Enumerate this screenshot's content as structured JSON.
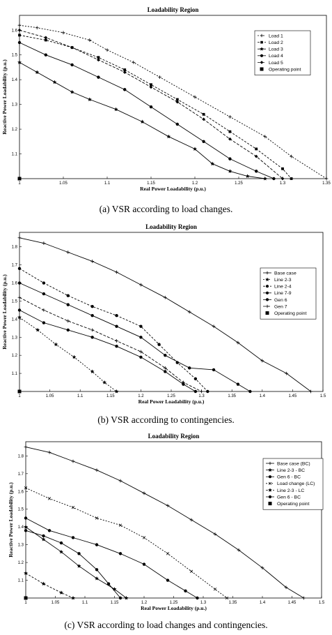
{
  "captions": [
    "(a) VSR according to load changes.",
    "(b) VSR according to contingencies.",
    "(c) VSR according to load changes and contingencies."
  ],
  "chart_data": [
    {
      "type": "line",
      "title": "Loadability Region",
      "xlabel": "Real Power Loadability (p.u.)",
      "ylabel": "Reactive Power Loadability (p.u.)",
      "xlim": [
        1.0,
        1.35
      ],
      "ylim": [
        1.0,
        1.66
      ],
      "xticks": [
        1,
        1.05,
        1.1,
        1.15,
        1.2,
        1.25,
        1.3,
        1.35
      ],
      "yticks": [
        1.1,
        1.2,
        1.3,
        1.4,
        1.5,
        1.6
      ],
      "xtick_labels": [
        "1",
        "1.05",
        "1.1",
        "1.15",
        "1.2",
        "1.25",
        "1.3",
        "1.35"
      ],
      "ytick_labels": [
        "1.1",
        "1.2",
        "1.3",
        "1.4",
        "1.5",
        "1.6"
      ],
      "grid": false,
      "legend_position": "top-right",
      "series": [
        {
          "name": "Load 1",
          "marker": "plus",
          "dash": "2,2",
          "x": [
            1.0,
            1.02,
            1.05,
            1.08,
            1.1,
            1.13,
            1.16,
            1.2,
            1.24,
            1.28,
            1.31,
            1.35
          ],
          "y": [
            1.62,
            1.61,
            1.59,
            1.56,
            1.52,
            1.47,
            1.41,
            1.33,
            1.25,
            1.17,
            1.09,
            1.0
          ]
        },
        {
          "name": "Load 2",
          "marker": "square",
          "dash": "3,2",
          "x": [
            1.0,
            1.03,
            1.06,
            1.09,
            1.12,
            1.15,
            1.18,
            1.21,
            1.24,
            1.27,
            1.3,
            1.31
          ],
          "y": [
            1.58,
            1.56,
            1.53,
            1.49,
            1.44,
            1.38,
            1.32,
            1.26,
            1.19,
            1.12,
            1.04,
            1.0
          ]
        },
        {
          "name": "Load 3",
          "marker": "star",
          "dash": "",
          "x": [
            1.0,
            1.02,
            1.04,
            1.06,
            1.08,
            1.11,
            1.14,
            1.17,
            1.2,
            1.22,
            1.24,
            1.26,
            1.28
          ],
          "y": [
            1.47,
            1.43,
            1.39,
            1.35,
            1.32,
            1.28,
            1.23,
            1.17,
            1.12,
            1.06,
            1.03,
            1.01,
            1.0
          ]
        },
        {
          "name": "Load 4",
          "marker": "dot",
          "dash": "",
          "x": [
            1.0,
            1.03,
            1.06,
            1.09,
            1.12,
            1.15,
            1.18,
            1.21,
            1.24,
            1.27,
            1.29
          ],
          "y": [
            1.55,
            1.5,
            1.46,
            1.41,
            1.36,
            1.29,
            1.22,
            1.15,
            1.08,
            1.03,
            1.0
          ]
        },
        {
          "name": "Load 5",
          "marker": "diamond",
          "dash": "4,2",
          "x": [
            1.0,
            1.03,
            1.06,
            1.09,
            1.12,
            1.15,
            1.18,
            1.21,
            1.24,
            1.27,
            1.3
          ],
          "y": [
            1.6,
            1.57,
            1.53,
            1.48,
            1.43,
            1.37,
            1.31,
            1.24,
            1.16,
            1.09,
            1.0
          ]
        },
        {
          "name": "Operating point",
          "marker": "square-filled",
          "line": false,
          "x": [
            1.0
          ],
          "y": [
            1.0
          ]
        }
      ]
    },
    {
      "type": "line",
      "title": "Loadability Region",
      "xlabel": "Real Power Loadability (p.u.)",
      "ylabel": "Reactive Power Loadability (p.u.)",
      "xlim": [
        1.0,
        1.5
      ],
      "ylim": [
        1.0,
        1.88
      ],
      "xticks": [
        1,
        1.05,
        1.1,
        1.15,
        1.2,
        1.25,
        1.3,
        1.35,
        1.4,
        1.45,
        1.5
      ],
      "yticks": [
        1.1,
        1.2,
        1.3,
        1.4,
        1.5,
        1.6,
        1.7,
        1.8
      ],
      "xtick_labels": [
        "1",
        "1.05",
        "1.1",
        "1.15",
        "1.2",
        "1.25",
        "1.3",
        "1.35",
        "1.4",
        "1.45",
        "1.5"
      ],
      "ytick_labels": [
        "1.1",
        "1.2",
        "1.3",
        "1.4",
        "1.5",
        "1.6",
        "1.7",
        "1.8"
      ],
      "grid": false,
      "legend_position": "right",
      "series": [
        {
          "name": "Base case",
          "marker": "plus",
          "dash": "",
          "x": [
            1.0,
            1.04,
            1.08,
            1.12,
            1.16,
            1.2,
            1.24,
            1.28,
            1.32,
            1.36,
            1.4,
            1.44,
            1.48
          ],
          "y": [
            1.85,
            1.82,
            1.77,
            1.72,
            1.66,
            1.59,
            1.52,
            1.44,
            1.36,
            1.27,
            1.17,
            1.1,
            1.0
          ]
        },
        {
          "name": "Line 2-3",
          "marker": "star",
          "dash": "2,2",
          "x": [
            1.0,
            1.03,
            1.06,
            1.09,
            1.12,
            1.14,
            1.16
          ],
          "y": [
            1.41,
            1.34,
            1.26,
            1.19,
            1.11,
            1.05,
            1.0
          ]
        },
        {
          "name": "Line 2-4",
          "marker": "dot",
          "dash": "3,2",
          "x": [
            1.0,
            1.04,
            1.08,
            1.12,
            1.16,
            1.2,
            1.23,
            1.26,
            1.29,
            1.31
          ],
          "y": [
            1.68,
            1.6,
            1.53,
            1.47,
            1.42,
            1.36,
            1.26,
            1.16,
            1.07,
            1.0
          ]
        },
        {
          "name": "Line 7-9",
          "marker": "dot",
          "dash": "",
          "x": [
            1.0,
            1.04,
            1.08,
            1.12,
            1.16,
            1.2,
            1.24,
            1.28,
            1.32,
            1.36,
            1.38
          ],
          "y": [
            1.6,
            1.54,
            1.48,
            1.42,
            1.36,
            1.3,
            1.2,
            1.13,
            1.12,
            1.04,
            1.0
          ]
        },
        {
          "name": "Gen 6",
          "marker": "dot",
          "dash": "",
          "x": [
            1.0,
            1.04,
            1.08,
            1.12,
            1.16,
            1.2,
            1.24,
            1.27,
            1.29
          ],
          "y": [
            1.45,
            1.38,
            1.34,
            1.3,
            1.25,
            1.19,
            1.11,
            1.04,
            1.0
          ]
        },
        {
          "name": "Gen 7",
          "marker": "plus",
          "dash": "4,2",
          "x": [
            1.0,
            1.04,
            1.08,
            1.12,
            1.16,
            1.2,
            1.24,
            1.27,
            1.3
          ],
          "y": [
            1.52,
            1.45,
            1.39,
            1.34,
            1.28,
            1.22,
            1.13,
            1.05,
            1.0
          ]
        },
        {
          "name": "Operating point",
          "marker": "square-filled",
          "line": false,
          "x": [
            1.0
          ],
          "y": [
            1.0
          ]
        }
      ]
    },
    {
      "type": "line",
      "title": "Loadability Region",
      "xlabel": "Real Power Loadability (p.u.)",
      "ylabel": "Reactive Power Loadability (p.u.)",
      "xlim": [
        1.0,
        1.5
      ],
      "ylim": [
        1.0,
        1.88
      ],
      "xticks": [
        1,
        1.05,
        1.1,
        1.15,
        1.2,
        1.25,
        1.3,
        1.35,
        1.4,
        1.45,
        1.5
      ],
      "yticks": [
        1.1,
        1.2,
        1.3,
        1.4,
        1.5,
        1.6,
        1.7,
        1.8
      ],
      "xtick_labels": [
        "1",
        "1.05",
        "1.1",
        "1.15",
        "1.2",
        "1.25",
        "1.3",
        "1.35",
        "1.4",
        "1.45",
        "1.5"
      ],
      "ytick_labels": [
        "1.1",
        "1.2",
        "1.3",
        "1.4",
        "1.5",
        "1.6",
        "1.7",
        "1.8"
      ],
      "grid": false,
      "legend_position": "right",
      "series": [
        {
          "name": "Base case (BC)",
          "marker": "plus",
          "dash": "",
          "x": [
            1.0,
            1.04,
            1.08,
            1.12,
            1.16,
            1.2,
            1.24,
            1.28,
            1.32,
            1.36,
            1.4,
            1.44,
            1.47
          ],
          "y": [
            1.85,
            1.82,
            1.77,
            1.72,
            1.66,
            1.59,
            1.52,
            1.44,
            1.36,
            1.27,
            1.17,
            1.06,
            1.0
          ]
        },
        {
          "name": "Line 2-3 - BC",
          "marker": "star",
          "dash": "",
          "x": [
            1.0,
            1.03,
            1.06,
            1.09,
            1.12,
            1.15,
            1.17
          ],
          "y": [
            1.4,
            1.33,
            1.26,
            1.18,
            1.11,
            1.05,
            1.0
          ]
        },
        {
          "name": "Gen 6 - BC",
          "marker": "dot",
          "dash": "",
          "x": [
            1.0,
            1.04,
            1.08,
            1.12,
            1.16,
            1.2,
            1.24,
            1.27,
            1.29
          ],
          "y": [
            1.45,
            1.38,
            1.34,
            1.3,
            1.25,
            1.19,
            1.1,
            1.04,
            1.0
          ]
        },
        {
          "name": "Load change (LC)",
          "marker": "x",
          "dash": "2,2",
          "x": [
            1.0,
            1.04,
            1.08,
            1.12,
            1.16,
            1.2,
            1.24,
            1.28,
            1.32,
            1.34
          ],
          "y": [
            1.62,
            1.56,
            1.51,
            1.45,
            1.41,
            1.34,
            1.25,
            1.15,
            1.05,
            1.0
          ]
        },
        {
          "name": "Line 2-3 - LC",
          "marker": "star",
          "dash": "3,2",
          "x": [
            1.0,
            1.03,
            1.06,
            1.08
          ],
          "y": [
            1.14,
            1.08,
            1.03,
            1.0
          ]
        },
        {
          "name": "Gen 6 - BC",
          "marker": "dot",
          "dash": "",
          "x": [
            1.0,
            1.03,
            1.06,
            1.09,
            1.12,
            1.14,
            1.16
          ],
          "y": [
            1.38,
            1.35,
            1.31,
            1.25,
            1.16,
            1.08,
            1.0
          ]
        },
        {
          "name": "Operating point",
          "marker": "square-filled",
          "line": false,
          "x": [
            1.0
          ],
          "y": [
            1.0
          ]
        }
      ]
    }
  ]
}
